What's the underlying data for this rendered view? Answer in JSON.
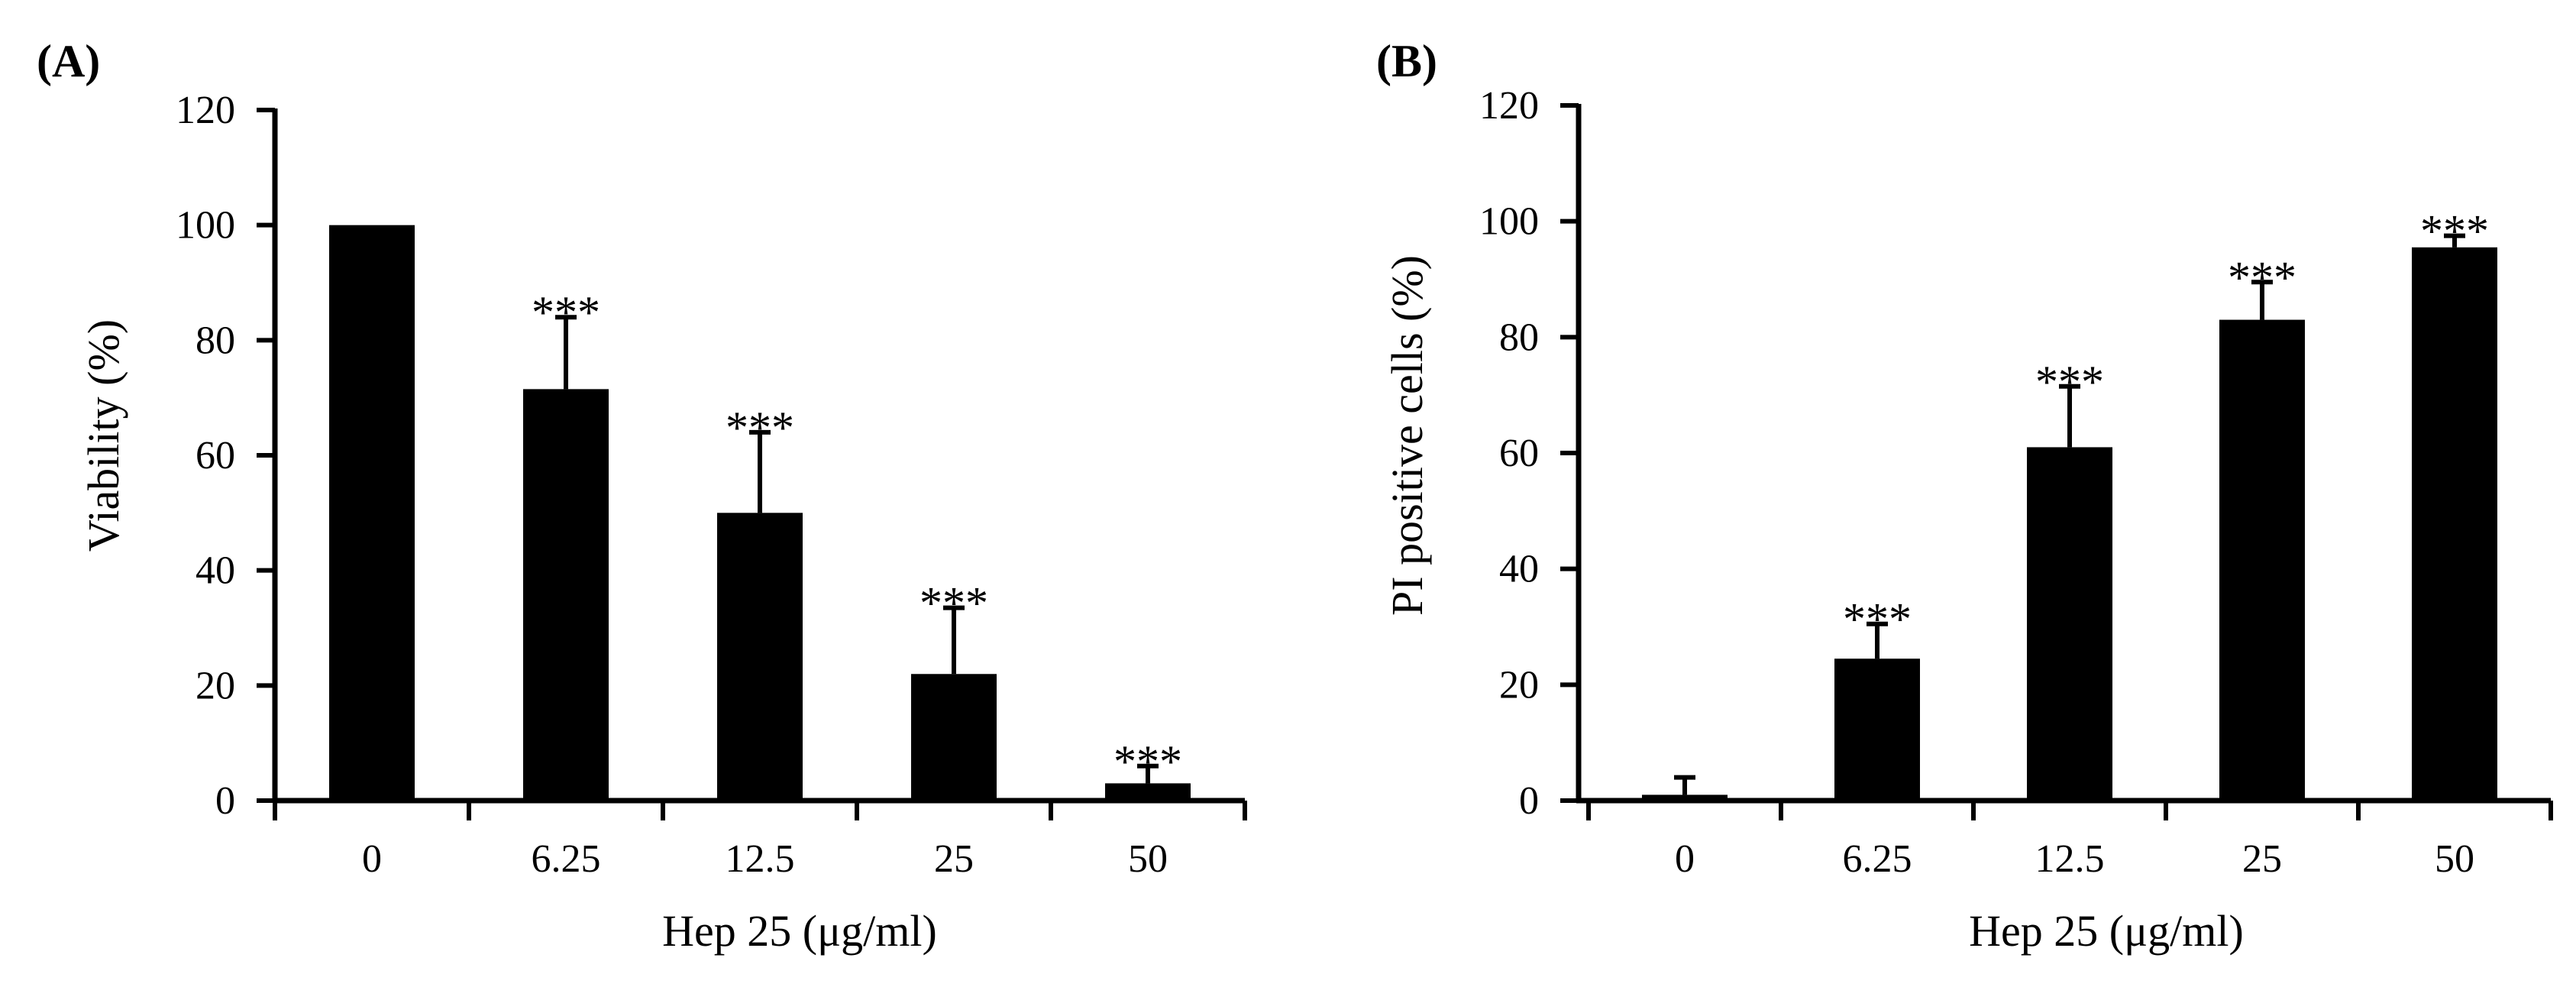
{
  "chart_data": [
    {
      "type": "bar",
      "panel_label": "(A)",
      "title": "",
      "categories": [
        "0",
        "6.25",
        "12.5",
        "25",
        "50"
      ],
      "values": [
        100,
        71.5,
        50,
        22,
        3
      ],
      "errors": [
        0,
        12.5,
        14,
        11.5,
        3
      ],
      "significance": [
        "",
        "***",
        "***",
        "***",
        "***"
      ],
      "xlabel": "Hep 25 (μg/ml)",
      "ylabel": "Viability (%)",
      "ylim": [
        0,
        120
      ],
      "yticks": [
        "0",
        "20",
        "40",
        "60",
        "80",
        "100",
        "120"
      ],
      "grid": false,
      "bar_color": "#000000"
    },
    {
      "type": "bar",
      "panel_label": "(B)",
      "title": "",
      "categories": [
        "0",
        "6.25",
        "12.5",
        "25",
        "50"
      ],
      "values": [
        1,
        24.5,
        61,
        83,
        95.5
      ],
      "errors": [
        3,
        6,
        10.5,
        6.5,
        2
      ],
      "significance": [
        "",
        "***",
        "***",
        "***",
        "***"
      ],
      "xlabel": "Hep 25 (μg/ml)",
      "ylabel": "PI positive cells (%)",
      "ylim": [
        0,
        120
      ],
      "yticks": [
        "0",
        "20",
        "40",
        "60",
        "80",
        "100",
        "120"
      ],
      "grid": false,
      "bar_color": "#000000"
    }
  ]
}
